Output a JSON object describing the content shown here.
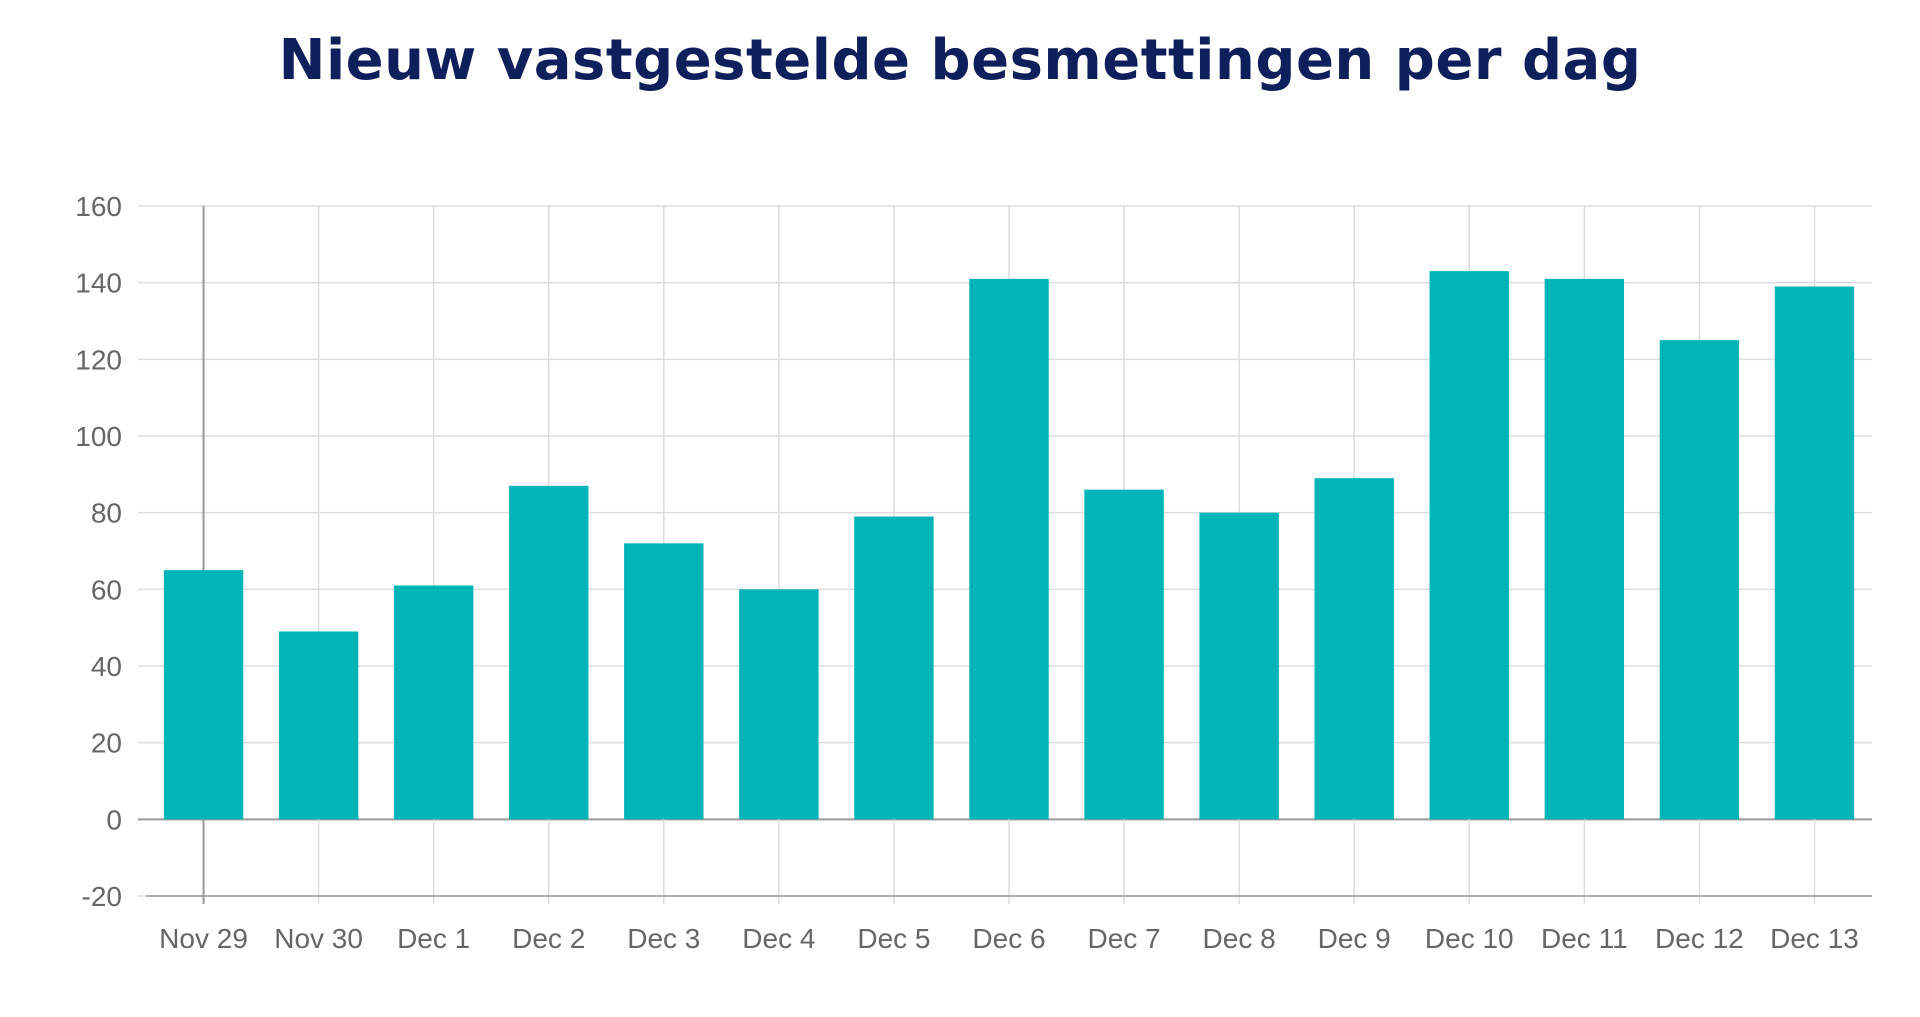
{
  "chart_data": {
    "type": "bar",
    "title": "Nieuw vastgestelde besmettingen per dag",
    "xlabel": "",
    "ylabel": "",
    "categories": [
      "Nov 29",
      "Nov 30",
      "Dec 1",
      "Dec 2",
      "Dec 3",
      "Dec 4",
      "Dec 5",
      "Dec 6",
      "Dec 7",
      "Dec 8",
      "Dec 9",
      "Dec 10",
      "Dec 11",
      "Dec 12",
      "Dec 13"
    ],
    "values": [
      65,
      49,
      61,
      87,
      72,
      60,
      79,
      141,
      86,
      80,
      89,
      143,
      141,
      125,
      139
    ],
    "ylim": [
      -20,
      160
    ],
    "yticks": [
      -20,
      0,
      20,
      40,
      60,
      80,
      100,
      120,
      140,
      160
    ],
    "grid": true,
    "legend": "none",
    "bar_color": "#00b4b8",
    "grid_color": "#dddddd",
    "axis_color": "#999999",
    "title_color": "#0f1f5c",
    "tick_label_color": "#666666"
  }
}
